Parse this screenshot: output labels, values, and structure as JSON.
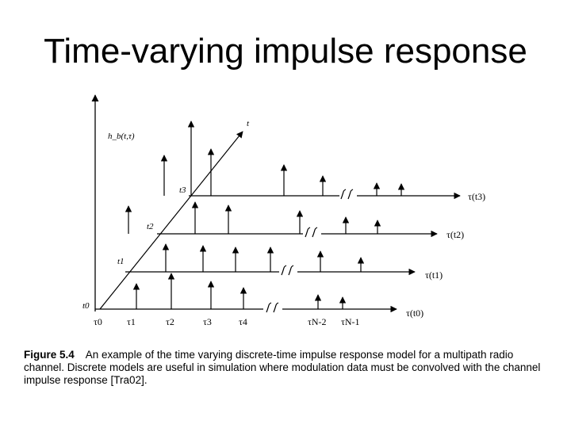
{
  "title": "Time-varying impulse response",
  "diagram": {
    "yaxis_label": "h_b(t,τ)",
    "time_axis_label": "t",
    "time_labels": [
      "t0",
      "t1",
      "t2",
      "t3"
    ],
    "tau_labels": [
      "τ0",
      "τ1",
      "τ2",
      "τ3",
      "τ4",
      "τN-2",
      "τN-1"
    ],
    "row_labels": [
      "τ(t0)",
      "τ(t1)",
      "τ(t2)",
      "τ(t3)"
    ]
  },
  "caption": {
    "figure_label": "Figure 5.4",
    "text": "An example of the time varying discrete-time impulse response model for a multipath radio channel. Discrete models are useful in simulation where modulation data must be convolved with the channel impulse response [Tra02]."
  }
}
